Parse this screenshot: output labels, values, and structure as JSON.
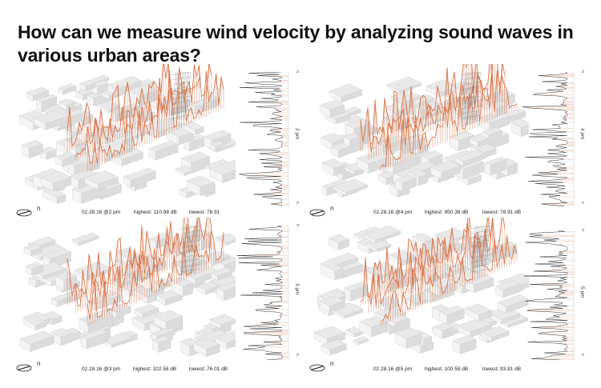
{
  "title": "How can we measure wind velocity by analyzing sound waves in various urban areas?",
  "colors": {
    "waves": "#d9754a",
    "buildings": "#e9e9e9",
    "building_edge": "#cfcfcf",
    "mesh": "#8a8a8a"
  },
  "north_label": "n",
  "strip_top_label": "n",
  "strip_bottom_label": "s",
  "panels": [
    {
      "date": "02.28.16 @2 pm",
      "highest": "highest: 110.98 dB",
      "lowest": "lowest: 78.91",
      "time_label": "2 pm"
    },
    {
      "date": "02.28.16 @4 pm",
      "highest": "highest: 950.38 dB",
      "lowest": "lowest: 78.91 dB",
      "time_label": "4 pm"
    },
    {
      "date": "02.28.16 @3 pm",
      "highest": "highest: 102.58 dB",
      "lowest": "lowest: 76.01 dB",
      "time_label": "3 pm"
    },
    {
      "date": "02.28.16 @5 pm",
      "highest": "highest: 100.58 dB",
      "lowest": "lowest: 93.81 dB",
      "time_label": "5 pm"
    }
  ]
}
